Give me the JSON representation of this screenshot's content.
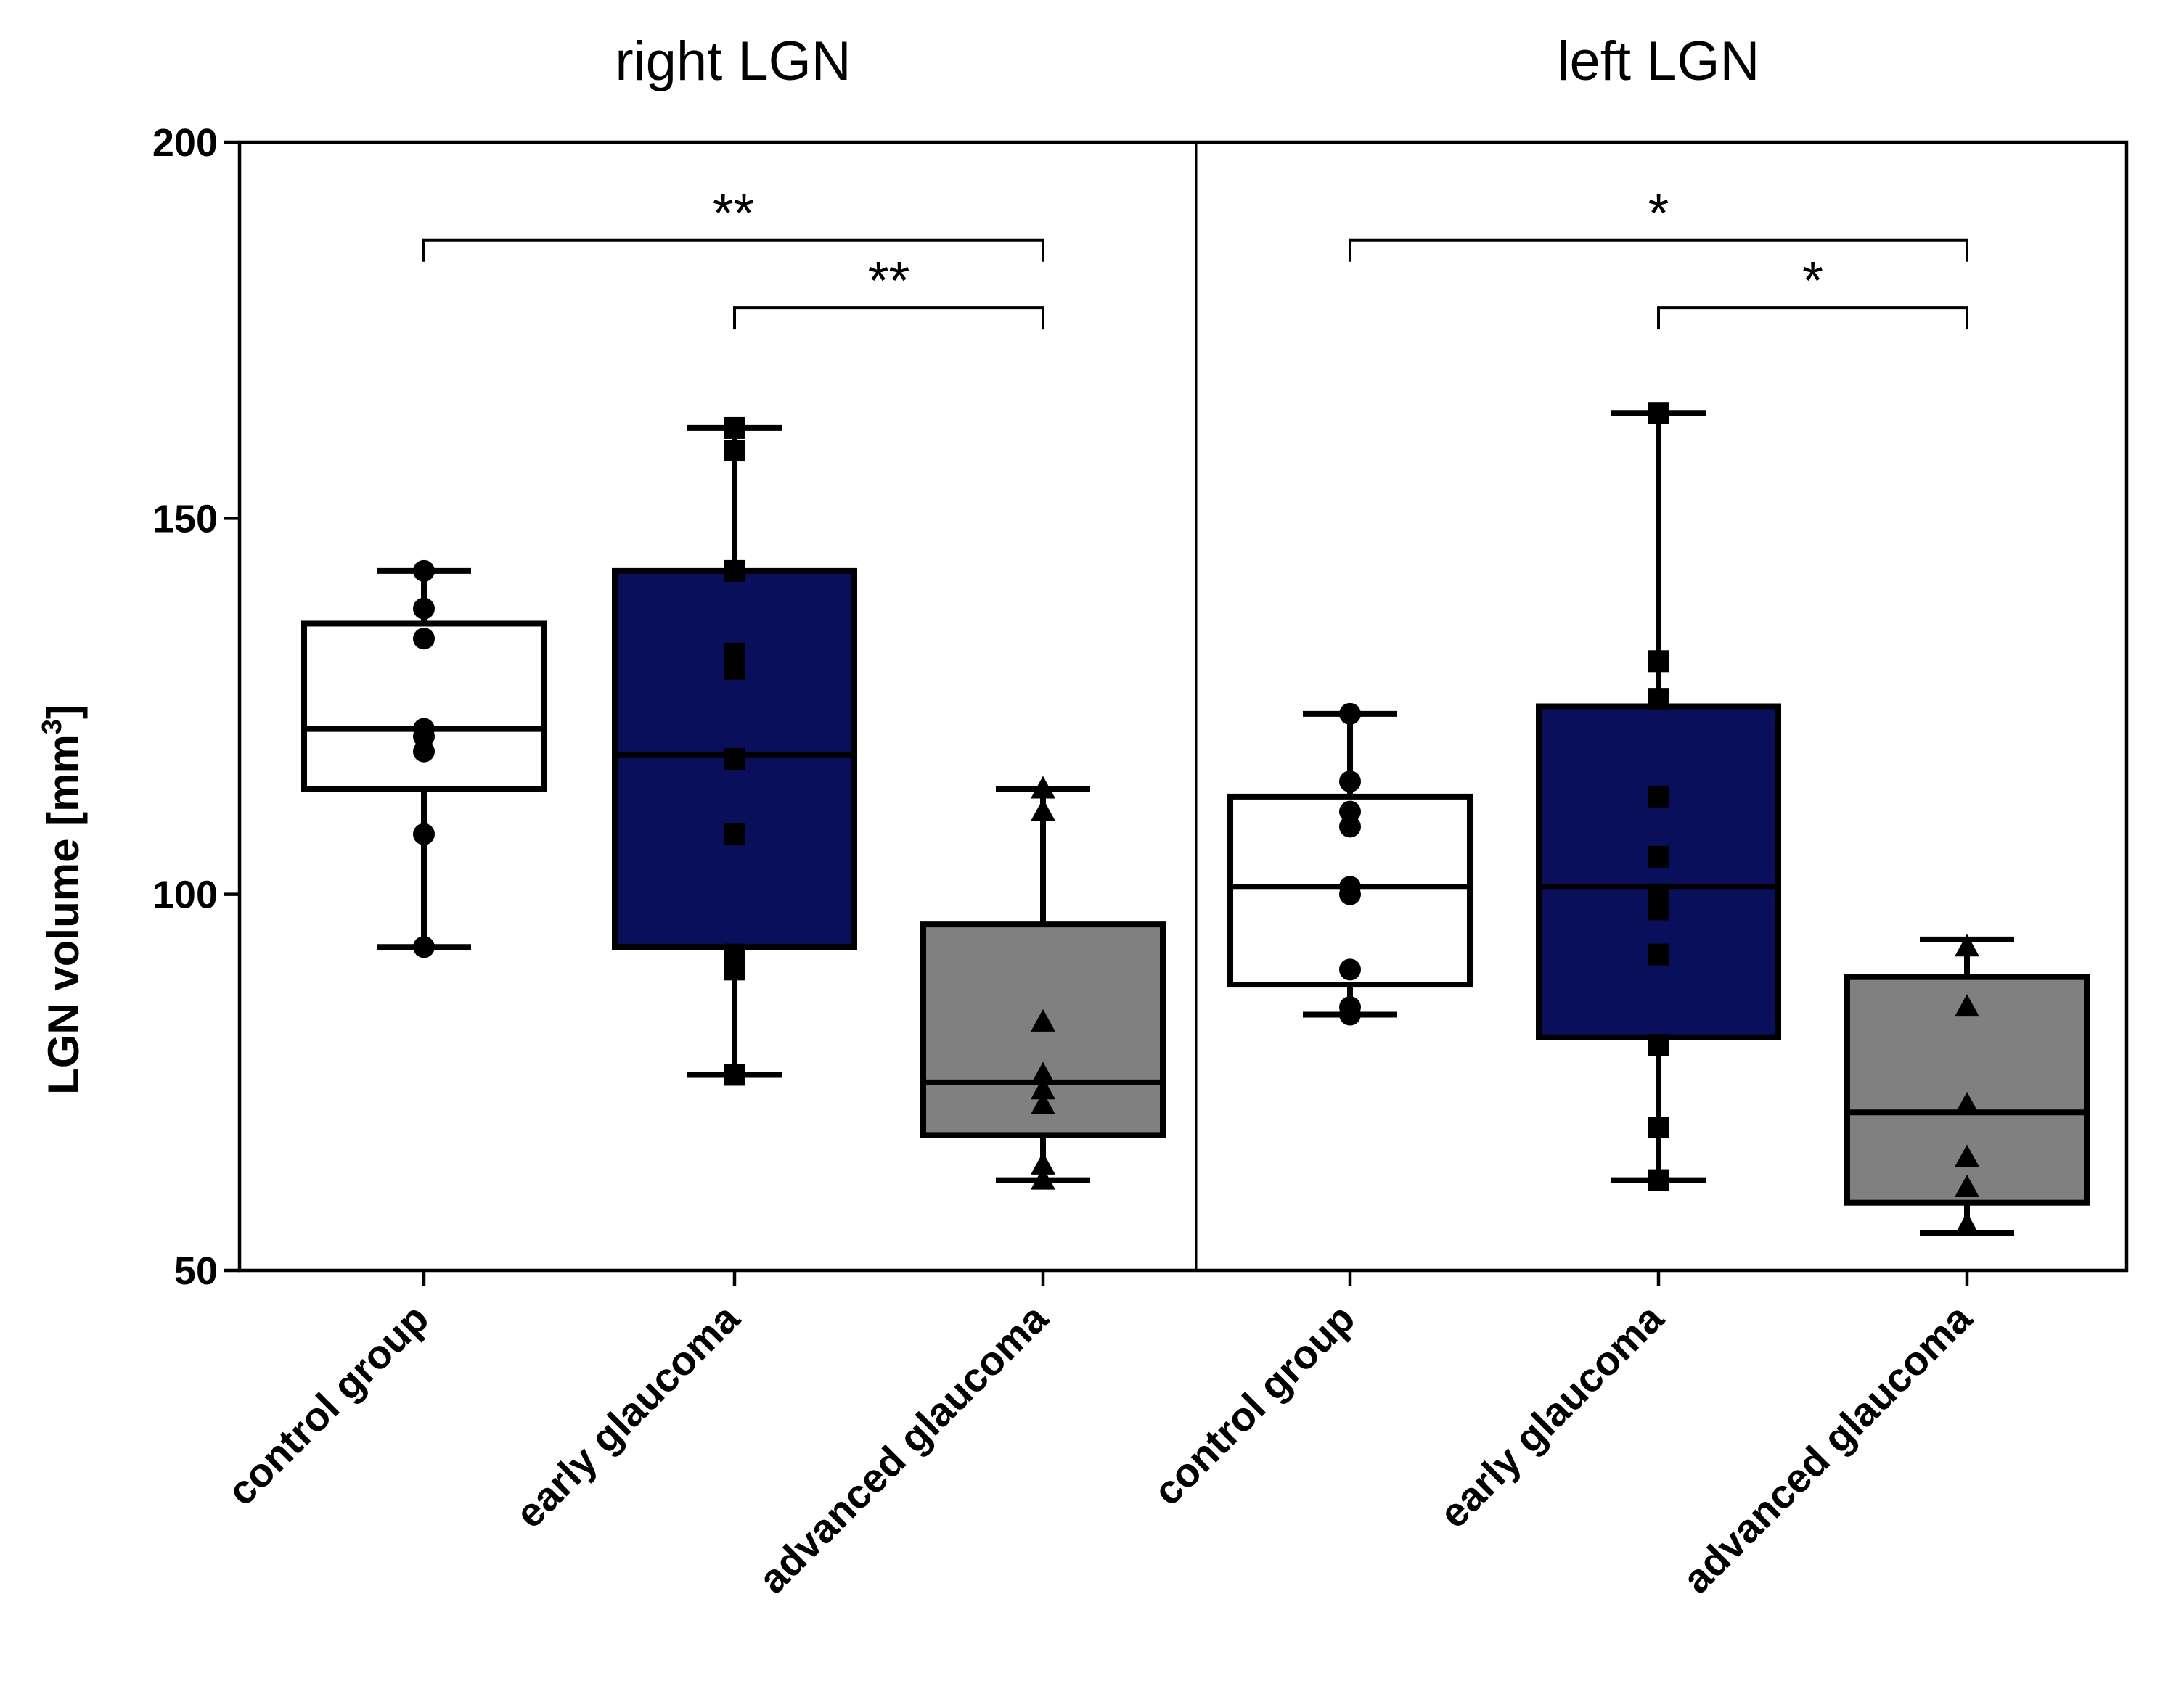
{
  "chart_data": {
    "type": "box",
    "ylabel": "LGN volume [mm",
    "ylabel_superscript": "3",
    "ylabel_close": "]",
    "ylim": [
      50,
      200
    ],
    "yticks": [
      50,
      100,
      150,
      200
    ],
    "panels": [
      {
        "title": "right LGN",
        "groups": [
          {
            "name": "control group",
            "fill": "#ffffff",
            "marker": "circle",
            "min": 93,
            "q1": 114,
            "median": 122,
            "q3": 136,
            "max": 143,
            "points": [
              143,
              138,
              134,
              122,
              121,
              119,
              108,
              93
            ]
          },
          {
            "name": "early glaucoma",
            "fill": "#0a0f5c",
            "marker": "square",
            "min": 76,
            "q1": 93,
            "median": 118.5,
            "q3": 143,
            "max": 162,
            "points": [
              162,
              159,
              143,
              132,
              130,
              118,
              108,
              92,
              90,
              76
            ]
          },
          {
            "name": "advanced glaucoma",
            "fill": "#808080",
            "marker": "triangle",
            "min": 62,
            "q1": 68,
            "median": 75,
            "q3": 96,
            "max": 114,
            "points": [
              114,
              111,
              83,
              76,
              74,
              72,
              64,
              62
            ]
          }
        ],
        "significance": [
          {
            "from": 0,
            "to": 2,
            "label": "**",
            "y": 187
          },
          {
            "from": 1,
            "to": 2,
            "label": "**",
            "y": 178
          }
        ]
      },
      {
        "title": "left LGN",
        "groups": [
          {
            "name": "control group",
            "fill": "#ffffff",
            "marker": "circle",
            "min": 84,
            "q1": 88,
            "median": 101,
            "q3": 113,
            "max": 124,
            "points": [
              124,
              115,
              111,
              109,
              101,
              100,
              90,
              85,
              84
            ]
          },
          {
            "name": "early glaucoma",
            "fill": "#0a0f5c",
            "marker": "square",
            "min": 62,
            "q1": 81,
            "median": 101,
            "q3": 125,
            "max": 164,
            "points": [
              164,
              131,
              126,
              113,
              105,
              100,
              98,
              92,
              80,
              69,
              62
            ]
          },
          {
            "name": "advanced glaucoma",
            "fill": "#808080",
            "marker": "triangle",
            "min": 55,
            "q1": 59,
            "median": 71,
            "q3": 89,
            "max": 94,
            "points": [
              93,
              85,
              72,
              65,
              61,
              56
            ]
          }
        ],
        "significance": [
          {
            "from": 0,
            "to": 2,
            "label": "*",
            "y": 187
          },
          {
            "from": 1,
            "to": 2,
            "label": "*",
            "y": 178
          }
        ]
      }
    ]
  }
}
